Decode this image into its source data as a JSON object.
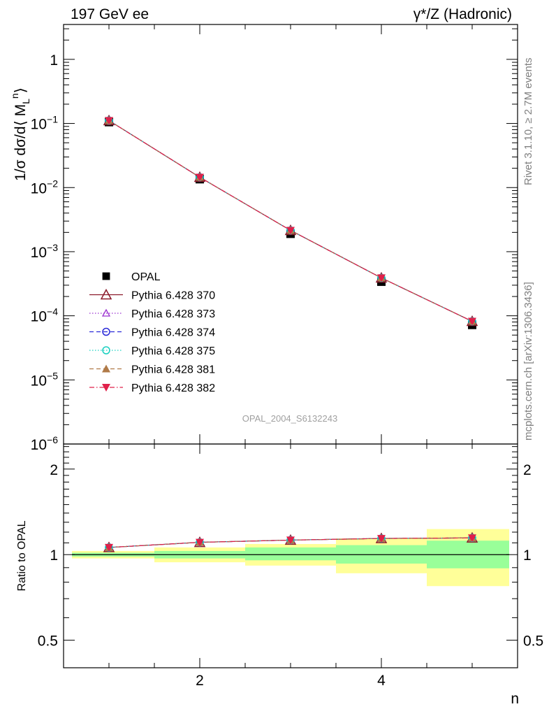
{
  "header": {
    "left_title": "197 GeV ee",
    "right_title": "γ*/Z (Hadronic)"
  },
  "side_labels": {
    "rivet": "Rivet 3.1.10, ≥ 2.7M events",
    "mcplots": "mcplots.cern.ch [arXiv:1306.3436]"
  },
  "analysis_id": "OPAL_2004_S6132243",
  "colors": {
    "opal": "#000000",
    "p370": "#8b1a2b",
    "p373": "#9b30d0",
    "p374": "#2a2ad8",
    "p375": "#1ad0c0",
    "p381": "#b07a48",
    "p382": "#e0204a",
    "band_outer": "#ffff99",
    "band_inner": "#99ff99"
  },
  "chart_data": [
    {
      "type": "line",
      "panel": "main",
      "ylabel": "1/σ dσ/d⟨ M_L^n⟩",
      "yscale": "log",
      "xlim": [
        0.5,
        5.5
      ],
      "ylim": [
        1e-06,
        3.5
      ],
      "y_tick_labels": [
        "10⁻⁶",
        "10⁻⁵",
        "10⁻⁴",
        "10⁻³",
        "10⁻²",
        "10⁻¹",
        "1"
      ],
      "legend_position": "lower-left",
      "x": [
        1,
        2,
        3,
        4,
        5
      ],
      "series": [
        {
          "name": "OPAL",
          "values": [
            0.105,
            0.0135,
            0.0019,
            0.00034,
            7.2e-05
          ]
        },
        {
          "name": "Pythia 6.428 370",
          "values": [
            0.111,
            0.0145,
            0.00215,
            0.00039,
            8.2e-05
          ]
        },
        {
          "name": "Pythia 6.428 373",
          "values": [
            0.111,
            0.0145,
            0.00215,
            0.00039,
            8.2e-05
          ]
        },
        {
          "name": "Pythia 6.428 374",
          "values": [
            0.111,
            0.0145,
            0.00215,
            0.00039,
            8.2e-05
          ]
        },
        {
          "name": "Pythia 6.428 375",
          "values": [
            0.111,
            0.0145,
            0.00215,
            0.00039,
            8.2e-05
          ]
        },
        {
          "name": "Pythia 6.428 381",
          "values": [
            0.111,
            0.0145,
            0.00215,
            0.00039,
            8.2e-05
          ]
        },
        {
          "name": "Pythia 6.428 382",
          "values": [
            0.111,
            0.0145,
            0.00215,
            0.00039,
            8.2e-05
          ]
        }
      ]
    },
    {
      "type": "line",
      "panel": "ratio",
      "xlabel": "n",
      "ylabel": "Ratio to OPAL",
      "yscale": "log",
      "xlim": [
        0.5,
        5.5
      ],
      "ylim": [
        0.4,
        2.45
      ],
      "y_ticks": [
        0.5,
        1,
        2
      ],
      "y_tick_labels": [
        "0.5",
        "1",
        "2"
      ],
      "x_ticks": [
        2,
        4
      ],
      "x_tick_labels": [
        "2",
        "4"
      ],
      "reference": 1,
      "bands": [
        {
          "x0": 0.5,
          "x1": 1.5,
          "inner": [
            0.985,
            1.015
          ],
          "outer": [
            0.97,
            1.03
          ]
        },
        {
          "x0": 1.5,
          "x1": 2.5,
          "inner": [
            0.97,
            1.03
          ],
          "outer": [
            0.94,
            1.06
          ]
        },
        {
          "x0": 2.5,
          "x1": 3.5,
          "inner": [
            0.955,
            1.06
          ],
          "outer": [
            0.915,
            1.09
          ]
        },
        {
          "x0": 3.5,
          "x1": 4.5,
          "inner": [
            0.93,
            1.08
          ],
          "outer": [
            0.86,
            1.14
          ]
        },
        {
          "x0": 4.5,
          "x1": 5.5,
          "inner": [
            0.895,
            1.12
          ],
          "outer": [
            0.775,
            1.23
          ]
        }
      ],
      "x": [
        1,
        2,
        3,
        4,
        5
      ],
      "series": [
        {
          "name": "Pythia 6.428 370",
          "values": [
            1.06,
            1.105,
            1.125,
            1.14,
            1.145
          ]
        },
        {
          "name": "Pythia 6.428 373",
          "values": [
            1.06,
            1.105,
            1.125,
            1.14,
            1.145
          ]
        },
        {
          "name": "Pythia 6.428 374",
          "values": [
            1.06,
            1.105,
            1.125,
            1.14,
            1.145
          ]
        },
        {
          "name": "Pythia 6.428 375",
          "values": [
            1.06,
            1.105,
            1.125,
            1.14,
            1.145
          ]
        },
        {
          "name": "Pythia 6.428 381",
          "values": [
            1.06,
            1.105,
            1.125,
            1.14,
            1.145
          ]
        },
        {
          "name": "Pythia 6.428 382",
          "values": [
            1.06,
            1.105,
            1.125,
            1.14,
            1.145
          ]
        }
      ]
    }
  ]
}
